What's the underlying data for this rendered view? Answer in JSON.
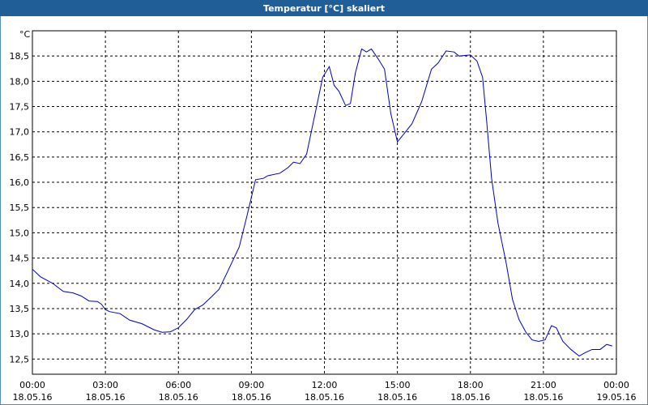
{
  "chart_data": {
    "type": "line",
    "title": "Temperatur [°C] skaliert",
    "ylabel": "°C",
    "x": [
      0,
      0.33,
      0.83,
      1.27,
      1.67,
      2.0,
      2.33,
      2.67,
      2.83,
      3.0,
      3.17,
      3.6,
      4.0,
      4.5,
      5.0,
      5.33,
      5.67,
      6.0,
      6.33,
      6.67,
      7.0,
      7.33,
      7.67,
      8.0,
      8.5,
      8.83,
      9.17,
      9.5,
      9.67,
      10.17,
      10.5,
      10.73,
      11.0,
      11.27,
      11.67,
      11.93,
      12.2,
      12.4,
      12.6,
      12.87,
      13.07,
      13.27,
      13.53,
      13.73,
      13.93,
      14.2,
      14.47,
      14.73,
      15.0,
      15.27,
      15.6,
      16.0,
      16.4,
      16.67,
      17.0,
      17.33,
      17.53,
      18.0,
      18.27,
      18.5,
      18.67,
      18.87,
      19.13,
      19.47,
      19.73,
      20.0,
      20.27,
      20.53,
      20.8,
      21.07,
      21.33,
      21.53,
      21.8,
      22.13,
      22.47,
      22.73,
      23.0,
      23.33,
      23.6,
      23.83
    ],
    "series": [
      {
        "name": "Temperatur",
        "color": "#0000c0",
        "values": [
          14.28,
          14.13,
          14.0,
          13.84,
          13.81,
          13.75,
          13.65,
          13.64,
          13.59,
          13.48,
          13.44,
          13.4,
          13.27,
          13.2,
          13.08,
          13.03,
          13.04,
          13.12,
          13.28,
          13.48,
          13.57,
          13.72,
          13.88,
          14.21,
          14.72,
          15.36,
          16.05,
          16.08,
          16.13,
          16.18,
          16.29,
          16.4,
          16.37,
          16.56,
          17.48,
          18.08,
          18.29,
          17.92,
          17.8,
          17.52,
          17.56,
          18.16,
          18.64,
          18.58,
          18.64,
          18.45,
          18.24,
          17.36,
          16.8,
          16.96,
          17.16,
          17.6,
          18.24,
          18.36,
          18.6,
          18.58,
          18.5,
          18.52,
          18.4,
          18.08,
          17.2,
          16.08,
          15.2,
          14.4,
          13.68,
          13.28,
          13.04,
          12.88,
          12.85,
          12.88,
          13.16,
          13.12,
          12.85,
          12.69,
          12.56,
          12.63,
          12.69,
          12.69,
          12.79,
          12.76
        ]
      }
    ],
    "xlim": [
      0,
      24
    ],
    "xticks": [
      {
        "value": 0,
        "label": "00:00"
      },
      {
        "value": 3,
        "label": "03:00"
      },
      {
        "value": 6,
        "label": "06:00"
      },
      {
        "value": 9,
        "label": "09:00"
      },
      {
        "value": 12,
        "label": "12:00"
      },
      {
        "value": 15,
        "label": "15:00"
      },
      {
        "value": 18,
        "label": "18:00"
      },
      {
        "value": 21,
        "label": "21:00"
      },
      {
        "value": 24,
        "label": "00:00"
      }
    ],
    "xtick_dates": [
      "18.05.16",
      "18.05.16",
      "18.05.16",
      "18.05.16",
      "18.05.16",
      "18.05.16",
      "18.05.16",
      "18.05.16",
      "19.05.16"
    ],
    "ylim": [
      12.2,
      19.0
    ],
    "yticks": [
      {
        "value": 12.5,
        "label": "12,5"
      },
      {
        "value": 13.0,
        "label": "13,0"
      },
      {
        "value": 13.5,
        "label": "13,5"
      },
      {
        "value": 14.0,
        "label": "14,0"
      },
      {
        "value": 14.5,
        "label": "14,5"
      },
      {
        "value": 15.0,
        "label": "15,0"
      },
      {
        "value": 15.5,
        "label": "15,5"
      },
      {
        "value": 16.0,
        "label": "16,0"
      },
      {
        "value": 16.5,
        "label": "16,5"
      },
      {
        "value": 17.0,
        "label": "17,0"
      },
      {
        "value": 17.5,
        "label": "17,5"
      },
      {
        "value": 18.0,
        "label": "18,0"
      },
      {
        "value": 18.5,
        "label": "18,5"
      }
    ],
    "grid": true
  }
}
